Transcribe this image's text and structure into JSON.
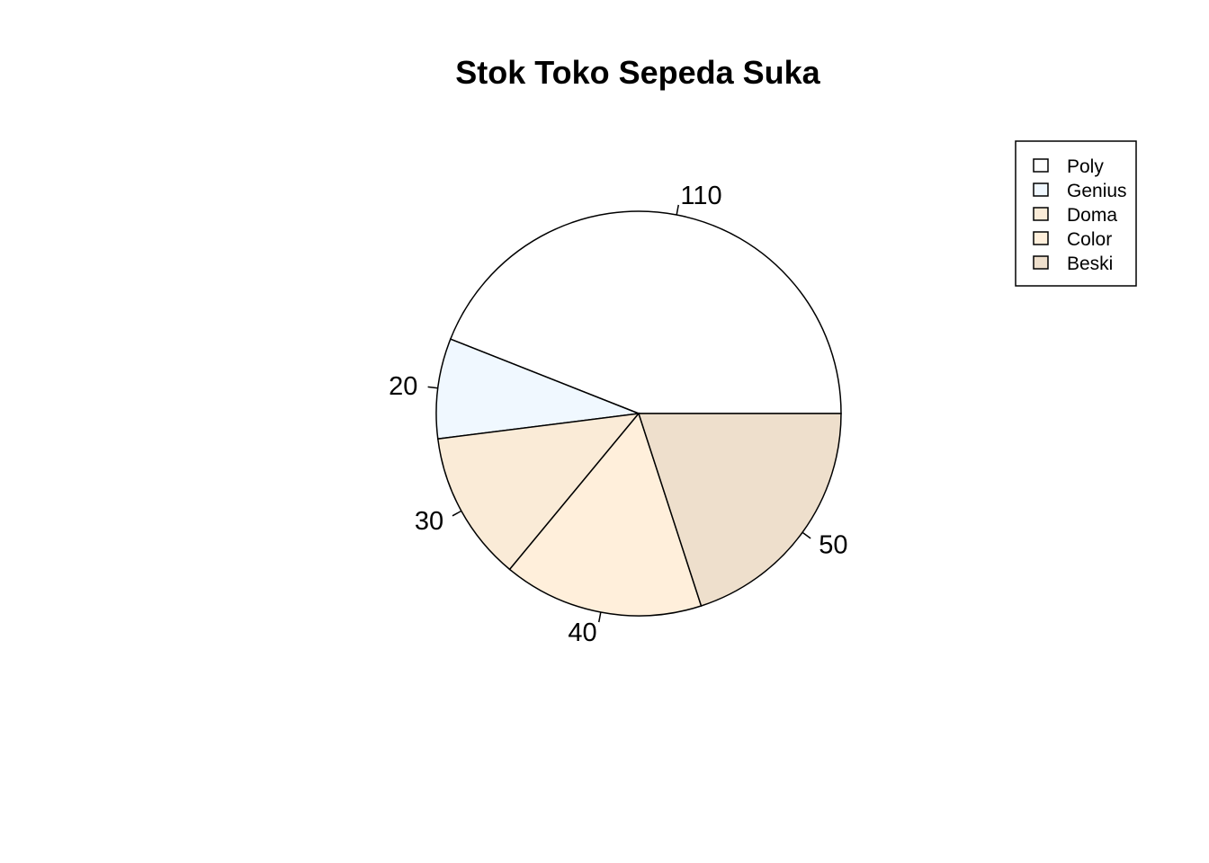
{
  "chart_data": {
    "type": "pie",
    "title": "Stok Toko Sepeda Suka",
    "categories": [
      "Poly",
      "Genius",
      "Doma",
      "Color",
      "Beski"
    ],
    "values": [
      110,
      20,
      30,
      40,
      50
    ],
    "labels": [
      "110",
      "20",
      "30",
      "40",
      "50"
    ],
    "colors": [
      "#FFFFFF",
      "#F0F8FF",
      "#FAEBD7",
      "#FFEFDB",
      "#EEDFCC"
    ],
    "start_angle_deg": 0,
    "direction": "counterclockwise",
    "legend": {
      "position": "top-right",
      "entries": [
        "Poly",
        "Genius",
        "Doma",
        "Color",
        "Beski"
      ]
    }
  }
}
